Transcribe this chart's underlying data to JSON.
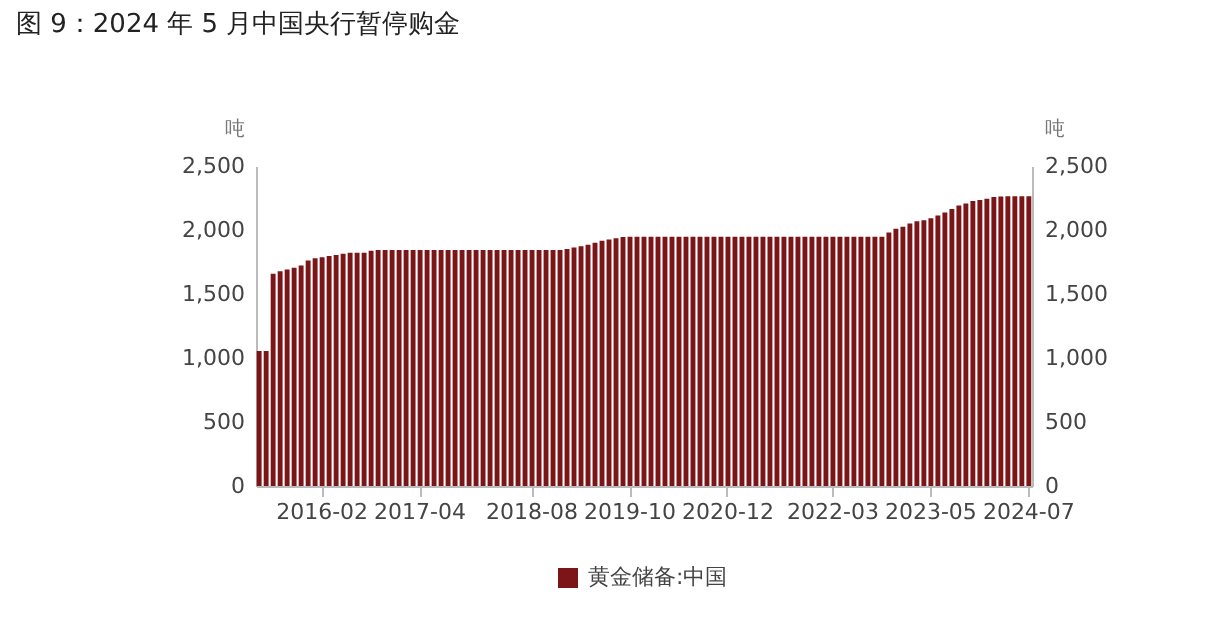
{
  "chart_data": {
    "type": "bar",
    "title": "图 9：2024 年 5 月中国央行暂停购金",
    "ylabel": "吨",
    "y2label": "吨",
    "categories": [
      null,
      null,
      null,
      null,
      null,
      null,
      null,
      null,
      null,
      "2016-02",
      null,
      null,
      null,
      null,
      null,
      null,
      null,
      null,
      null,
      null,
      null,
      null,
      null,
      "2017-04",
      null,
      null,
      null,
      null,
      null,
      null,
      null,
      null,
      null,
      null,
      null,
      null,
      null,
      null,
      null,
      "2018-08",
      null,
      null,
      null,
      null,
      null,
      null,
      null,
      null,
      null,
      null,
      null,
      null,
      null,
      "2019-10",
      null,
      null,
      null,
      null,
      null,
      null,
      null,
      null,
      null,
      null,
      null,
      null,
      null,
      "2020-12",
      null,
      null,
      null,
      null,
      null,
      null,
      null,
      null,
      null,
      null,
      null,
      null,
      null,
      null,
      "2022-03",
      null,
      null,
      null,
      null,
      null,
      null,
      null,
      null,
      null,
      null,
      null,
      null,
      null,
      "2023-05",
      null,
      null,
      null,
      null,
      null,
      null,
      null,
      null,
      null,
      null,
      null,
      null,
      null,
      "2024-07"
    ],
    "series": [
      {
        "name": "黄金储备:中国",
        "color": "#7b1518",
        "values": [
          1054,
          1054,
          1658,
          1677,
          1692,
          1706,
          1722,
          1762,
          1780,
          1788,
          1797,
          1805,
          1814,
          1823,
          1823,
          1823,
          1838,
          1843,
          1843,
          1843,
          1843,
          1843,
          1843,
          1843,
          1843,
          1843,
          1843,
          1843,
          1843,
          1843,
          1843,
          1843,
          1843,
          1843,
          1843,
          1843,
          1843,
          1843,
          1843,
          1843,
          1843,
          1843,
          1843,
          1843,
          1852,
          1864,
          1874,
          1885,
          1900,
          1916,
          1926,
          1936,
          1945,
          1948,
          1948,
          1948,
          1948,
          1948,
          1948,
          1948,
          1948,
          1948,
          1948,
          1948,
          1948,
          1948,
          1948,
          1948,
          1948,
          1948,
          1948,
          1948,
          1948,
          1948,
          1948,
          1948,
          1948,
          1948,
          1948,
          1948,
          1948,
          1948,
          1948,
          1948,
          1948,
          1948,
          1948,
          1948,
          1948,
          1948,
          1980,
          2010,
          2025,
          2050,
          2068,
          2076,
          2092,
          2113,
          2136,
          2165,
          2191,
          2207,
          2226,
          2235,
          2245,
          2257,
          2262,
          2264,
          2264,
          2264,
          2264
        ]
      }
    ],
    "ylim": [
      0,
      2500
    ],
    "yticks": [
      0,
      500,
      {
        "value": 1000,
        "label": "1,000"
      },
      {
        "value": 1500,
        "label": "1,500"
      },
      {
        "value": 2000,
        "label": "2,000"
      },
      {
        "value": 2500,
        "label": "2,500"
      }
    ],
    "y2lim": [
      0,
      2500
    ],
    "y2ticks": [
      0,
      500,
      {
        "value": 1000,
        "label": "1,000"
      },
      {
        "value": 1500,
        "label": "1,500"
      },
      {
        "value": 2000,
        "label": "2,000"
      },
      {
        "value": 2500,
        "label": "2,500"
      }
    ],
    "legend": "bottom",
    "grid": false
  }
}
